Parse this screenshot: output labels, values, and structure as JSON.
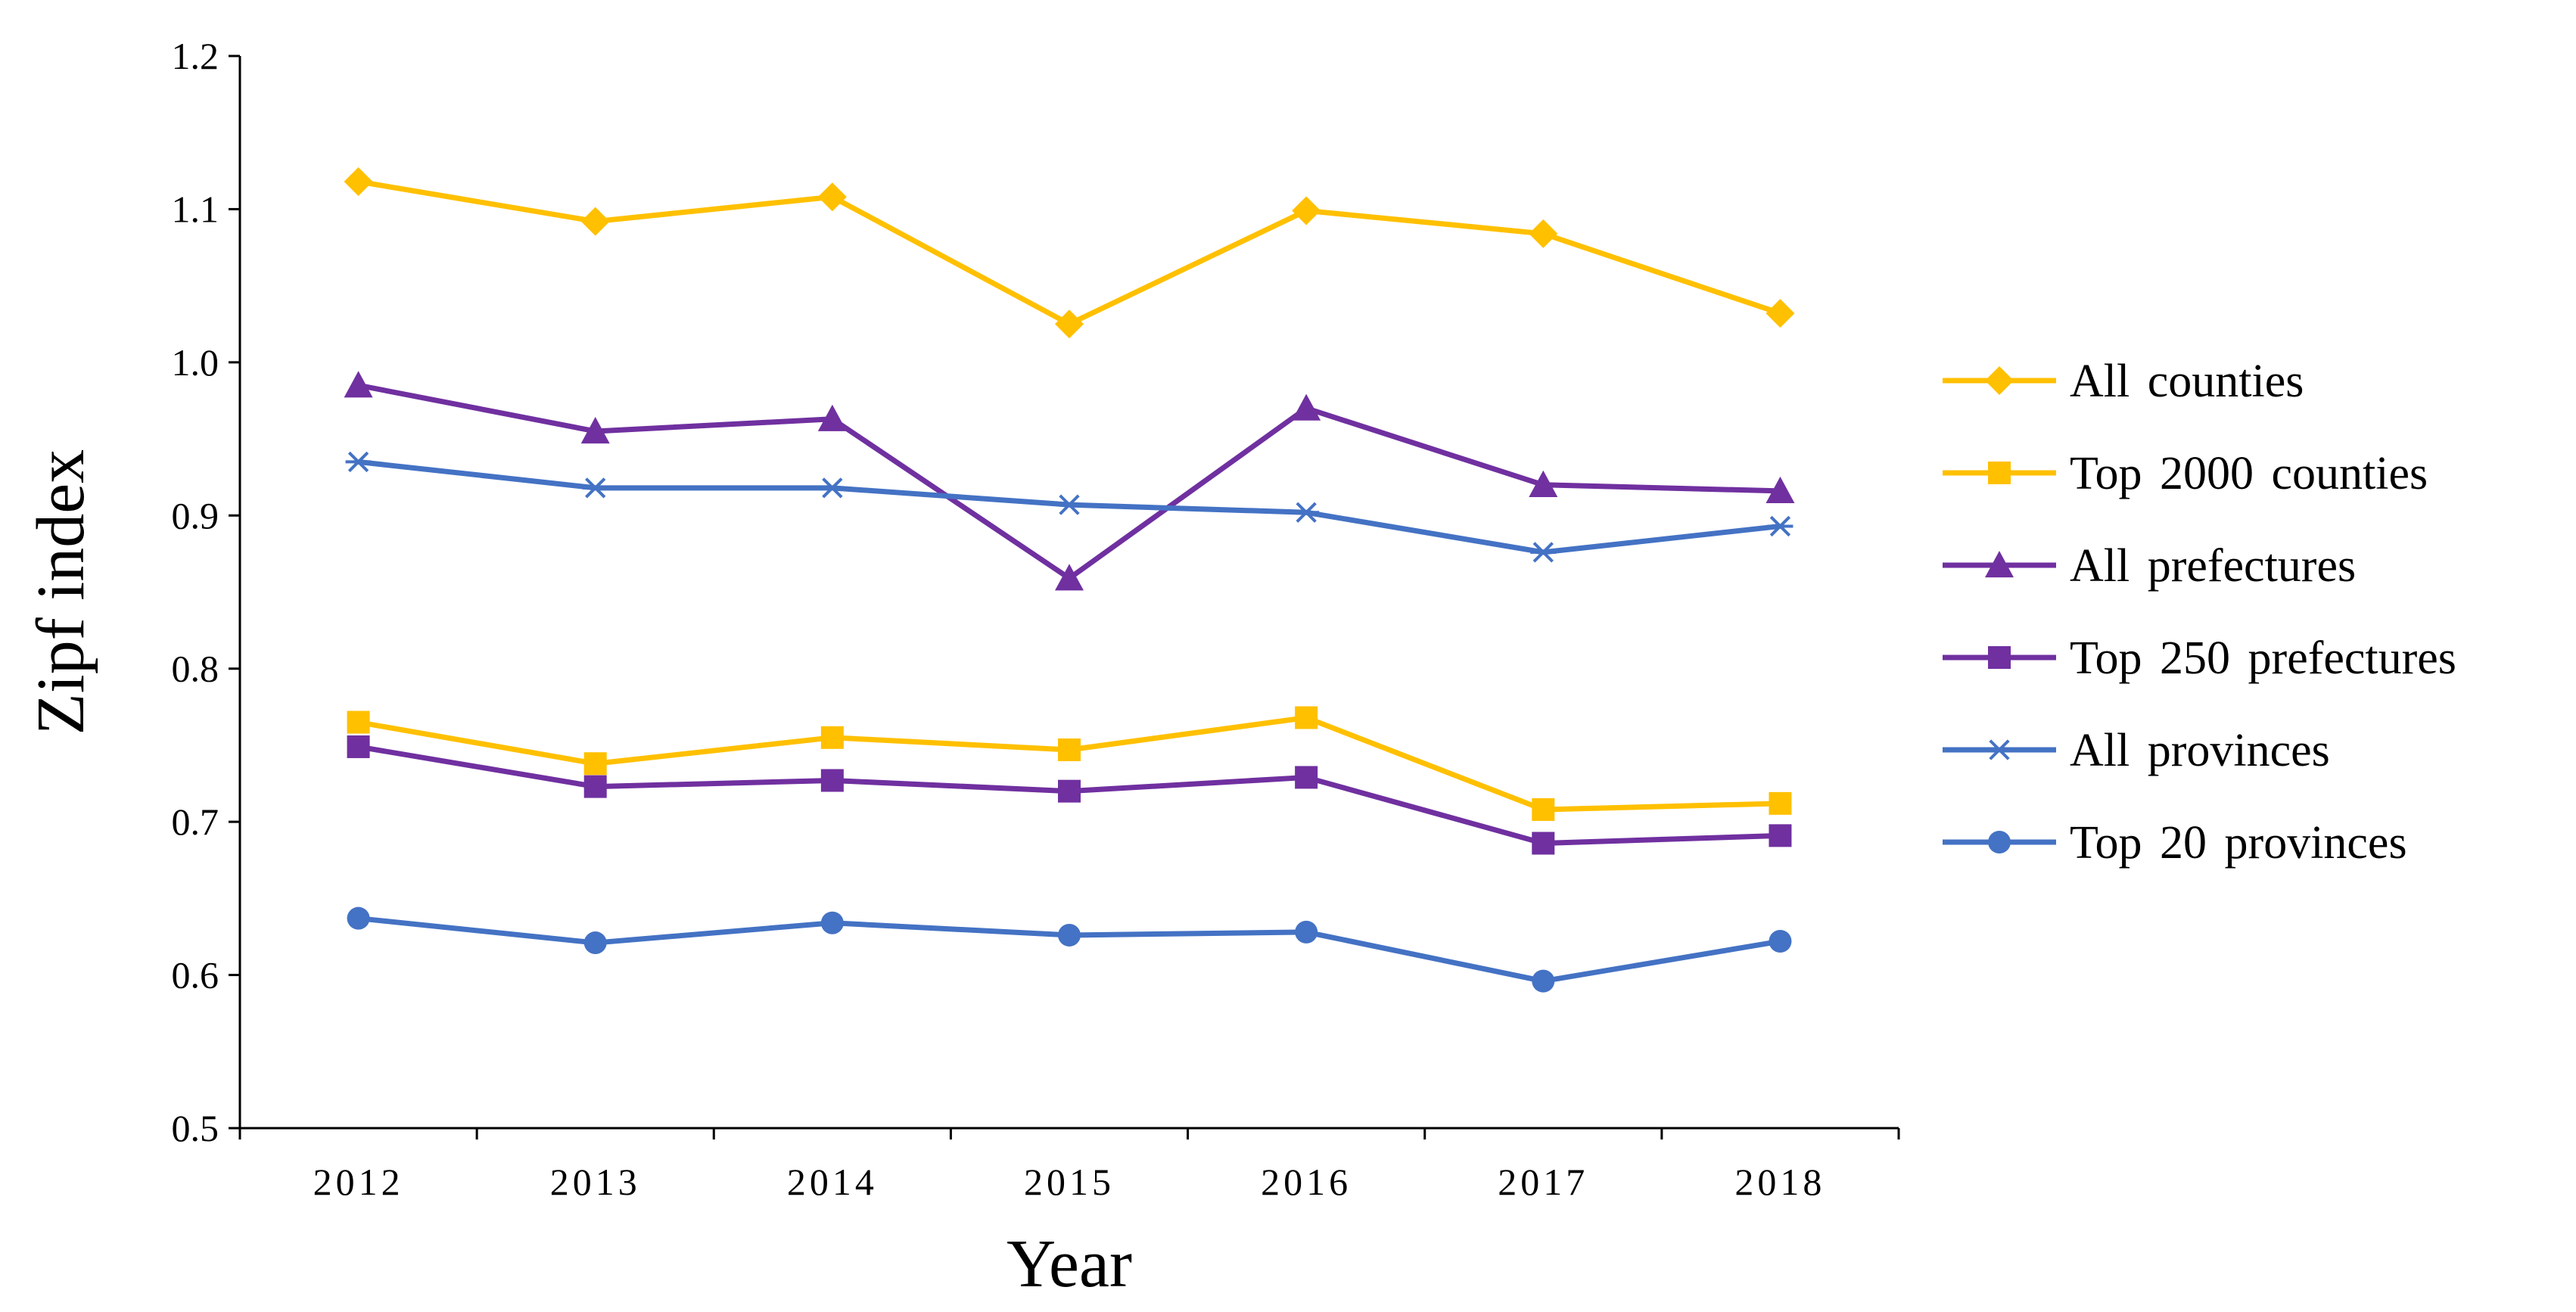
{
  "chart_data": {
    "type": "line",
    "xlabel": "Year",
    "ylabel": "Zipf index",
    "ylim": [
      0.5,
      1.2
    ],
    "yticks": [
      "0.5",
      "0.6",
      "0.7",
      "0.8",
      "0.9",
      "1.0",
      "1.1",
      "1.2"
    ],
    "categories": [
      "2012",
      "2013",
      "2014",
      "2015",
      "2016",
      "2017",
      "2018"
    ],
    "grid": false,
    "legend_position": "right",
    "series": [
      {
        "name": "All counties",
        "color": "#FFC000",
        "marker": "diamond",
        "values": [
          1.118,
          1.092,
          1.108,
          1.025,
          1.099,
          1.084,
          1.032
        ]
      },
      {
        "name": "Top 2000 counties",
        "color": "#FFC000",
        "marker": "square",
        "values": [
          0.765,
          0.738,
          0.755,
          0.747,
          0.768,
          0.708,
          0.712
        ]
      },
      {
        "name": "All prefectures",
        "color": "#7030A0",
        "marker": "triangle",
        "values": [
          0.985,
          0.955,
          0.963,
          0.859,
          0.97,
          0.92,
          0.916
        ]
      },
      {
        "name": "Top 250 prefectures",
        "color": "#7030A0",
        "marker": "square",
        "values": [
          0.749,
          0.723,
          0.727,
          0.72,
          0.729,
          0.686,
          0.691
        ]
      },
      {
        "name": "All provinces",
        "color": "#4472C4",
        "marker": "asterisk",
        "values": [
          0.935,
          0.918,
          0.918,
          0.907,
          0.902,
          0.876,
          0.893
        ]
      },
      {
        "name": "Top 20 provinces",
        "color": "#4472C4",
        "marker": "circle",
        "values": [
          0.637,
          0.621,
          0.634,
          0.626,
          0.628,
          0.596,
          0.622
        ]
      }
    ]
  }
}
